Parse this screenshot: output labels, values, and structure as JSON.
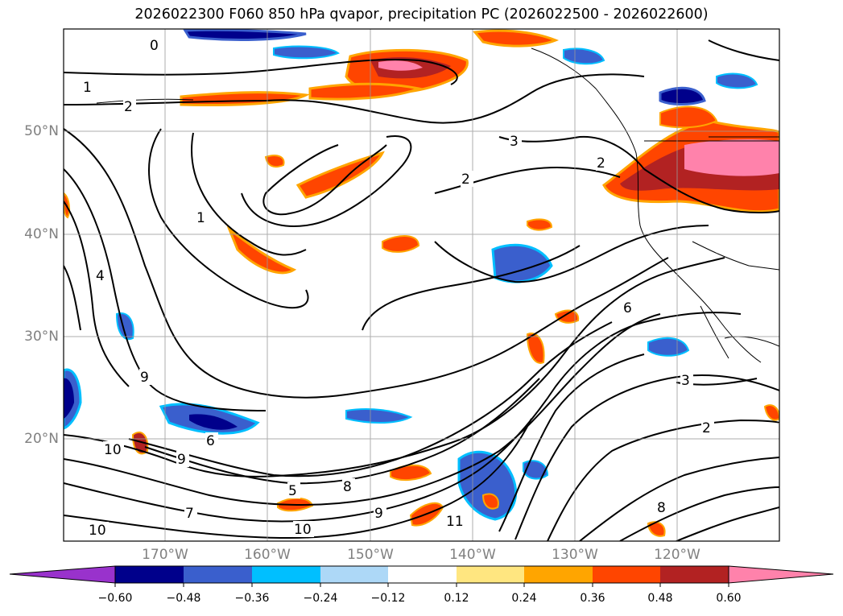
{
  "title": "2026022300 F060 850 hPa qvapor, precipitation PC (2026022500 - 2026022600)",
  "map": {
    "lat_labels": [
      "50°N",
      "40°N",
      "30°N",
      "20°N"
    ],
    "lon_labels": [
      "170°W",
      "160°W",
      "150°W",
      "140°W",
      "130°W",
      "120°W"
    ],
    "contour_labels": [
      "0",
      "1",
      "1",
      "2",
      "2",
      "2",
      "2",
      "3",
      "3",
      "4",
      "5",
      "6",
      "6",
      "7",
      "8",
      "8",
      "9",
      "9",
      "9",
      "10",
      "10",
      "10",
      "11"
    ]
  },
  "colorbar": {
    "tick_labels": [
      "−0.60",
      "−0.48",
      "−0.36",
      "−0.24",
      "−0.12",
      "0.12",
      "0.24",
      "0.36",
      "0.48",
      "0.60"
    ],
    "colors": [
      "#9932cc",
      "#00008b",
      "#3a5fcd",
      "#00bfff",
      "#add8f7",
      "#ffffff",
      "#ffe680",
      "#ffa500",
      "#ff4500",
      "#b22222",
      "#ff82ab"
    ]
  }
}
